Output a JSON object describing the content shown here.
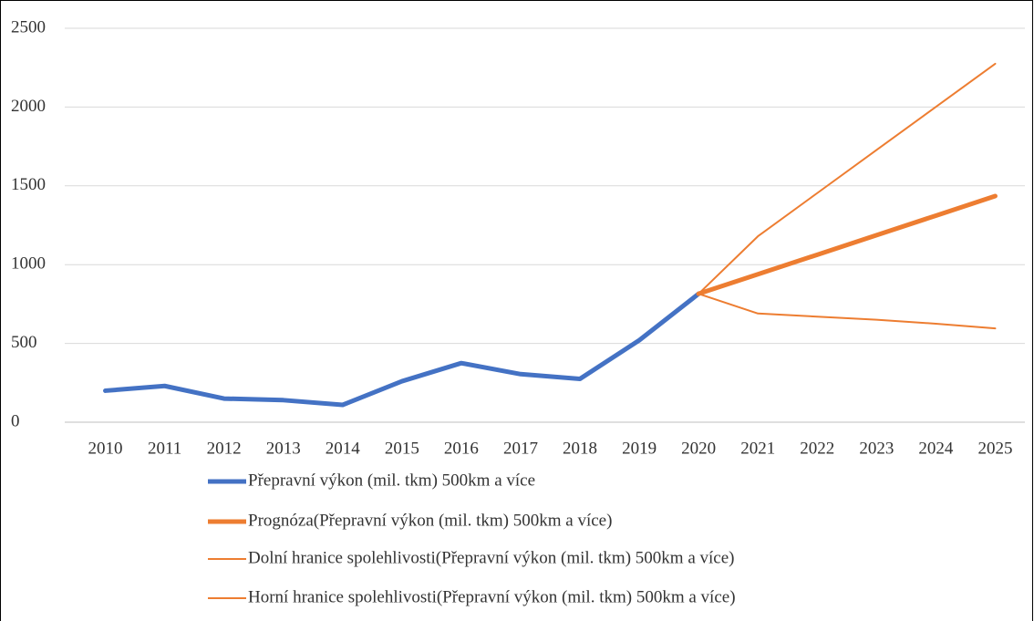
{
  "chart_data": {
    "type": "line",
    "categories": [
      "2010",
      "2011",
      "2012",
      "2013",
      "2014",
      "2015",
      "2016",
      "2017",
      "2018",
      "2019",
      "2020",
      "2021",
      "2022",
      "2023",
      "2024",
      "2025"
    ],
    "series": [
      {
        "name": "Přepravní výkon (mil. tkm) 500km a více",
        "color": "#4472c4",
        "width": 5,
        "values": [
          200,
          230,
          150,
          140,
          110,
          260,
          375,
          305,
          275,
          520,
          815,
          null,
          null,
          null,
          null,
          null
        ]
      },
      {
        "name": "Prognóza(Přepravní výkon (mil. tkm) 500km a více)",
        "color": "#ed7d31",
        "width": 5,
        "values": [
          null,
          null,
          null,
          null,
          null,
          null,
          null,
          null,
          null,
          null,
          815,
          939,
          1063,
          1187,
          1311,
          1435
        ]
      },
      {
        "name": "Dolní hranice spolehlivosti(Přepravní výkon (mil. tkm) 500km a více)",
        "color": "#ed7d31",
        "width": 2,
        "values": [
          null,
          null,
          null,
          null,
          null,
          null,
          null,
          null,
          null,
          null,
          815,
          690,
          670,
          650,
          625,
          595
        ]
      },
      {
        "name": "Horní hranice spolehlivosti(Přepravní výkon (mil. tkm) 500km a více)",
        "color": "#ed7d31",
        "width": 2,
        "values": [
          null,
          null,
          null,
          null,
          null,
          null,
          null,
          null,
          null,
          null,
          815,
          1180,
          1454,
          1728,
          2001,
          2275
        ]
      }
    ],
    "ylim": [
      0,
      2500
    ],
    "yticks": [
      0,
      500,
      1000,
      1500,
      2000,
      2500
    ],
    "grid": true,
    "legend": "bottom"
  }
}
